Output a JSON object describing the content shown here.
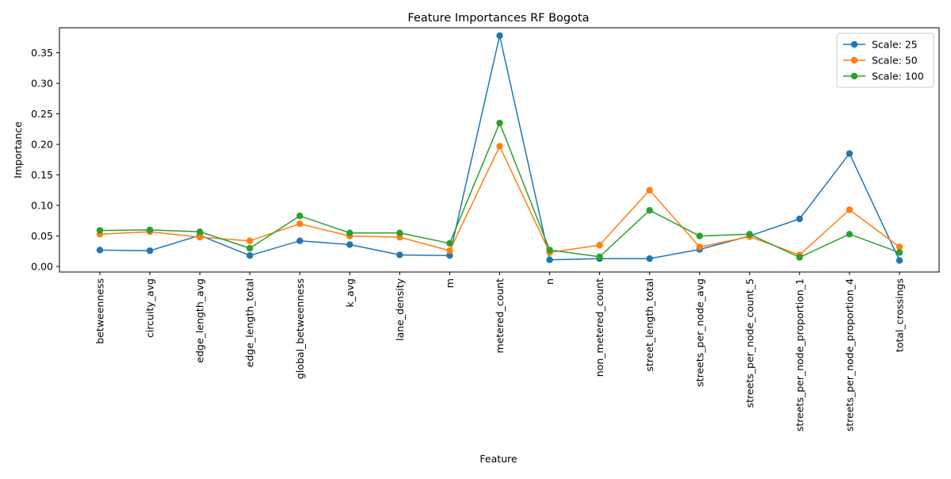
{
  "chart_data": {
    "type": "line",
    "title": "Feature Importances RF Bogota",
    "xlabel": "Feature",
    "ylabel": "Importance",
    "ylim": [
      -0.009,
      0.391
    ],
    "yticks": [
      0.0,
      0.05,
      0.1,
      0.15,
      0.2,
      0.25,
      0.3,
      0.35
    ],
    "grid": false,
    "legend_position": "top-right",
    "categories": [
      "betweenness",
      "circuity_avg",
      "edge_length_avg",
      "edge_length_total",
      "global_betweenness",
      "k_avg",
      "lane_density",
      "m",
      "metered_count",
      "n",
      "non_metered_count",
      "street_length_total",
      "streets_per_node_avg",
      "streets_per_node_count_5",
      "streets_per_node_proportion_1",
      "streets_per_node_proportion_4",
      "total_crossings"
    ],
    "series": [
      {
        "name": "Scale: 25",
        "color": "#1f77b4",
        "values": [
          0.027,
          0.026,
          0.051,
          0.018,
          0.042,
          0.036,
          0.019,
          0.018,
          0.378,
          0.011,
          0.013,
          0.013,
          0.028,
          0.05,
          0.078,
          0.185,
          0.01
        ]
      },
      {
        "name": "Scale: 50",
        "color": "#ff7f0e",
        "values": [
          0.053,
          0.057,
          0.048,
          0.042,
          0.07,
          0.05,
          0.048,
          0.026,
          0.197,
          0.023,
          0.035,
          0.125,
          0.032,
          0.049,
          0.019,
          0.093,
          0.032
        ]
      },
      {
        "name": "Scale: 100",
        "color": "#2ca02c",
        "values": [
          0.059,
          0.06,
          0.057,
          0.03,
          0.083,
          0.055,
          0.055,
          0.038,
          0.235,
          0.027,
          0.016,
          0.092,
          0.05,
          0.053,
          0.015,
          0.053,
          0.023
        ]
      }
    ]
  }
}
